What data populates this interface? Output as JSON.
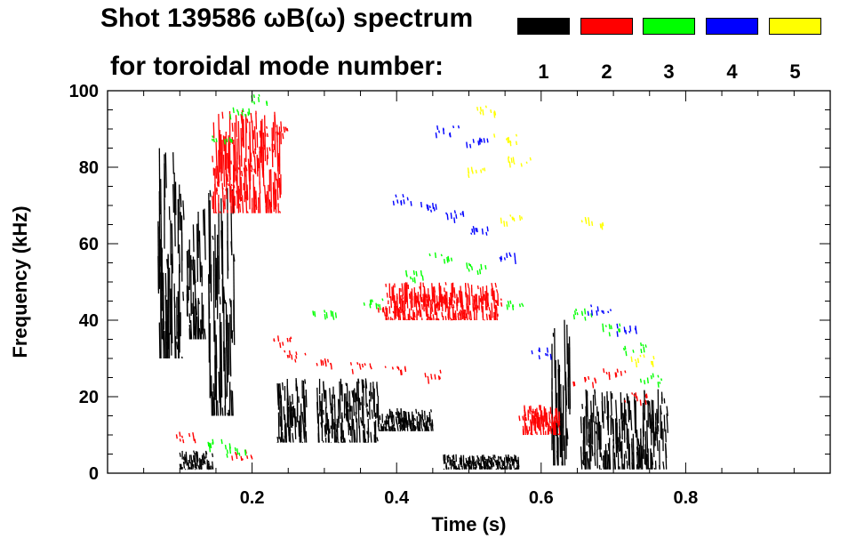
{
  "chart_data": {
    "type": "scatter",
    "title_line1": "Shot 139586 ωB(ω) spectrum",
    "title_line2": "for toroidal mode number:",
    "xlabel": "Time (s)",
    "ylabel": "Frequency (kHz)",
    "xlim": [
      0.0,
      1.0
    ],
    "ylim": [
      0,
      100
    ],
    "xticks": [
      {
        "value": 0.2,
        "label": "0.2"
      },
      {
        "value": 0.4,
        "label": "0.4"
      },
      {
        "value": 0.6,
        "label": "0.6"
      },
      {
        "value": 0.8,
        "label": "0.8"
      }
    ],
    "yticks": [
      {
        "value": 0,
        "label": "0"
      },
      {
        "value": 20,
        "label": "20"
      },
      {
        "value": 40,
        "label": "40"
      },
      {
        "value": 60,
        "label": "60"
      },
      {
        "value": 80,
        "label": "80"
      },
      {
        "value": 100,
        "label": "100"
      }
    ],
    "legend": [
      {
        "n": "1",
        "color": "#000000"
      },
      {
        "n": "2",
        "color": "#ff0000"
      },
      {
        "n": "3",
        "color": "#00ff00"
      },
      {
        "n": "4",
        "color": "#0000ff"
      },
      {
        "n": "5",
        "color": "#ffff00"
      }
    ],
    "series": [
      {
        "name": "n=1",
        "color": "#000000",
        "regions": [
          {
            "t": [
              0.07,
              0.105
            ],
            "f": [
              30,
              85
            ]
          },
          {
            "t": [
              0.11,
              0.135
            ],
            "f": [
              35,
              70
            ]
          },
          {
            "t": [
              0.14,
              0.175
            ],
            "f": [
              15,
              75
            ]
          },
          {
            "t": [
              0.1,
              0.145
            ],
            "f": [
              1,
              6
            ]
          },
          {
            "t": [
              0.235,
              0.275
            ],
            "f": [
              8,
              25
            ]
          },
          {
            "t": [
              0.29,
              0.375
            ],
            "f": [
              8,
              25
            ]
          },
          {
            "t": [
              0.375,
              0.45
            ],
            "f": [
              11,
              17
            ]
          },
          {
            "t": [
              0.465,
              0.57
            ],
            "f": [
              1,
              5
            ]
          },
          {
            "t": [
              0.615,
              0.64
            ],
            "f": [
              2,
              43
            ]
          },
          {
            "t": [
              0.655,
              0.775
            ],
            "f": [
              1,
              22
            ]
          }
        ]
      },
      {
        "name": "n=2",
        "color": "#ff0000",
        "points": [
          [
            0.165,
            75
          ],
          [
            0.19,
            80
          ],
          [
            0.215,
            85
          ],
          [
            0.235,
            90
          ],
          [
            0.238,
            35
          ],
          [
            0.26,
            31
          ],
          [
            0.3,
            29
          ],
          [
            0.35,
            28
          ],
          [
            0.4,
            28
          ],
          [
            0.45,
            26
          ],
          [
            0.39,
            43
          ],
          [
            0.43,
            46
          ],
          [
            0.47,
            45
          ],
          [
            0.53,
            45
          ],
          [
            0.58,
            15
          ],
          [
            0.61,
            14
          ],
          [
            0.66,
            25
          ],
          [
            0.7,
            27
          ],
          [
            0.73,
            20
          ],
          [
            0.11,
            10
          ],
          [
            0.185,
            5
          ]
        ],
        "regions": [
          {
            "t": [
              0.145,
              0.24
            ],
            "f": [
              68,
              95
            ]
          },
          {
            "t": [
              0.385,
              0.54
            ],
            "f": [
              40,
              50
            ]
          },
          {
            "t": [
              0.575,
              0.625
            ],
            "f": [
              10,
              18
            ]
          }
        ]
      },
      {
        "name": "n=3",
        "color": "#00ff00",
        "points": [
          [
            0.16,
            88
          ],
          [
            0.18,
            95
          ],
          [
            0.21,
            98
          ],
          [
            0.3,
            42
          ],
          [
            0.37,
            45
          ],
          [
            0.42,
            52
          ],
          [
            0.46,
            57
          ],
          [
            0.51,
            54
          ],
          [
            0.56,
            45
          ],
          [
            0.66,
            42
          ],
          [
            0.7,
            38
          ],
          [
            0.73,
            33
          ],
          [
            0.75,
            25
          ],
          [
            0.155,
            8
          ],
          [
            0.18,
            6
          ]
        ]
      },
      {
        "name": "n=4",
        "color": "#0000ff",
        "points": [
          [
            0.41,
            72
          ],
          [
            0.44,
            70
          ],
          [
            0.48,
            68
          ],
          [
            0.51,
            64
          ],
          [
            0.55,
            57
          ],
          [
            0.47,
            90
          ],
          [
            0.51,
            87
          ],
          [
            0.6,
            32
          ],
          [
            0.68,
            43
          ],
          [
            0.72,
            38
          ]
        ]
      },
      {
        "name": "n=5",
        "color": "#ffff00",
        "points": [
          [
            0.52,
            95
          ],
          [
            0.55,
            88
          ],
          [
            0.57,
            82
          ],
          [
            0.51,
            79
          ],
          [
            0.56,
            67
          ],
          [
            0.67,
            66
          ],
          [
            0.74,
            30
          ]
        ]
      }
    ]
  }
}
